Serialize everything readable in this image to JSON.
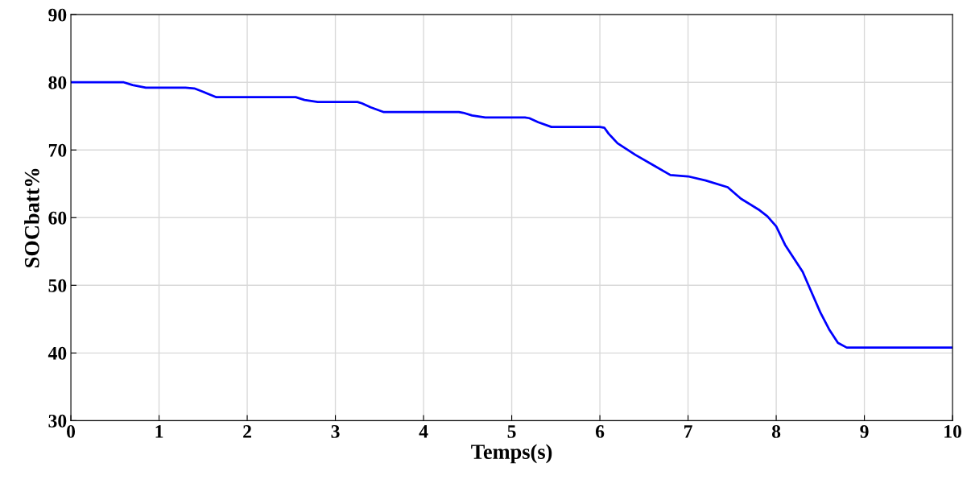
{
  "chart_data": {
    "type": "line",
    "xlabel": "Temps(s)",
    "ylabel": "SOCbatt%",
    "xlim": [
      0,
      10
    ],
    "ylim": [
      30,
      90
    ],
    "xticks": [
      0,
      1,
      2,
      3,
      4,
      5,
      6,
      7,
      8,
      9,
      10
    ],
    "yticks": [
      30,
      40,
      50,
      60,
      70,
      80,
      90
    ],
    "grid": true,
    "line_style": "solid",
    "marker": "none",
    "series": [
      {
        "color": "#0000ff",
        "x": [
          0,
          0.6,
          0.7,
          0.85,
          1.3,
          1.4,
          1.5,
          1.65,
          2.5,
          2.55,
          2.65,
          2.8,
          3.25,
          3.3,
          3.4,
          3.55,
          4.4,
          4.45,
          4.55,
          4.7,
          5.15,
          5.2,
          5.3,
          5.45,
          6.0,
          6.05,
          6.1,
          6.2,
          6.4,
          6.6,
          6.8,
          7.0,
          7.2,
          7.45,
          7.6,
          7.8,
          7.9,
          8.0,
          8.1,
          8.2,
          8.3,
          8.4,
          8.5,
          8.6,
          8.7,
          8.8,
          8.9,
          10
        ],
        "values": [
          80,
          80,
          79.6,
          79.2,
          79.2,
          79.1,
          78.6,
          77.8,
          77.8,
          77.8,
          77.4,
          77.1,
          77.1,
          76.9,
          76.3,
          75.6,
          75.6,
          75.5,
          75.1,
          74.8,
          74.8,
          74.7,
          74.1,
          73.4,
          73.4,
          73.3,
          72.4,
          71,
          69.3,
          67.8,
          66.3,
          66.1,
          65.5,
          64.5,
          62.8,
          61.2,
          60.2,
          58.7,
          56,
          54,
          52,
          49,
          46,
          43.5,
          41.5,
          40.8,
          40.8,
          40.8
        ]
      }
    ]
  }
}
